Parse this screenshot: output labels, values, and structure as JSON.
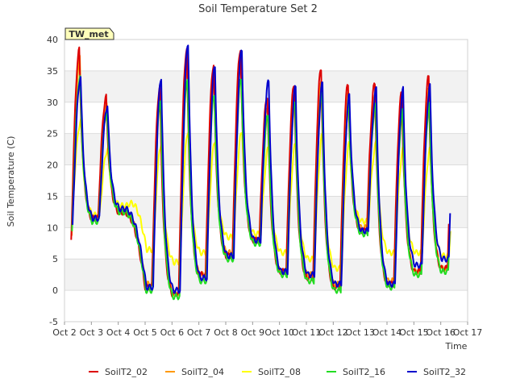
{
  "chart_data": {
    "type": "line",
    "title": "Soil Temperature Set 2",
    "xlabel": "Time",
    "ylabel": "Soil Temperature (C)",
    "ylim": [
      -5,
      40
    ],
    "xlim": [
      "Oct 2",
      "Oct 17"
    ],
    "yticks": [
      -5,
      0,
      5,
      10,
      15,
      20,
      25,
      30,
      35,
      40
    ],
    "xtick_labels": [
      "Oct 2",
      "Oct 3",
      "Oct 4",
      "Oct 5",
      "Oct 6",
      "Oct 7",
      "Oct 8",
      "Oct 9",
      "Oct 10",
      "Oct 11",
      "Oct 12",
      "Oct 13",
      "Oct 14",
      "Oct 15",
      "Oct 16",
      "Oct 17"
    ],
    "grid": "horizontal bands",
    "legend_position": "bottom",
    "annotation": "TW_met",
    "days": [
      "Oct 2",
      "Oct 3",
      "Oct 4",
      "Oct 5",
      "Oct 6",
      "Oct 7",
      "Oct 8",
      "Oct 9",
      "Oct 10",
      "Oct 11",
      "Oct 12",
      "Oct 13",
      "Oct 14",
      "Oct 15",
      "Oct 16"
    ],
    "series": [
      {
        "name": "SoilT2_02",
        "color": "#dd0000",
        "minima": [
          8,
          11.5,
          12.5,
          0.5,
          -0.5,
          2.5,
          5.5,
          8,
          3,
          2,
          0.5,
          9.5,
          1,
          3,
          3.5
        ],
        "maxima": [
          38.3,
          30.8,
          null,
          32.5,
          38.5,
          36,
          38.5,
          31,
          33,
          35.5,
          33,
          33,
          31.5,
          34,
          32
        ]
      },
      {
        "name": "SoilT2_04",
        "color": "#ff9900",
        "minima": [
          8.5,
          11.5,
          12.5,
          1,
          -0.5,
          2.5,
          6,
          8,
          3,
          2.5,
          1,
          10,
          1.5,
          3,
          3.5
        ],
        "maxima": [
          37,
          29.5,
          null,
          31,
          36,
          33,
          36,
          29.5,
          31.5,
          33.5,
          31.5,
          31,
          29.5,
          32,
          30
        ]
      },
      {
        "name": "SoilT2_08",
        "color": "#ffff00",
        "minima": [
          13.5,
          12,
          13.5,
          6.5,
          4.5,
          6,
          8.5,
          9,
          6,
          5,
          3.5,
          11,
          6,
          6,
          5.5
        ],
        "maxima": [
          27,
          22.5,
          null,
          23.5,
          25.5,
          24,
          25.5,
          23,
          23.5,
          25,
          23.5,
          23.5,
          22.5,
          22.5,
          22.5
        ]
      },
      {
        "name": "SoilT2_16",
        "color": "#22dd22",
        "minima": [
          9,
          11,
          12.5,
          0,
          -1,
          1.5,
          5,
          7.5,
          2.5,
          1.5,
          0,
          9,
          0.5,
          2.5,
          3
        ],
        "maxima": [
          34,
          28.5,
          null,
          30.5,
          34,
          31.5,
          34,
          28,
          30,
          31.5,
          29.5,
          29.5,
          28.5,
          29.5,
          29
        ]
      },
      {
        "name": "SoilT2_32",
        "color": "#0000cc",
        "minima": [
          10,
          11.5,
          13,
          0.5,
          0,
          2,
          5.5,
          8,
          3,
          2.5,
          1,
          9.5,
          1,
          4,
          5
        ],
        "maxima": [
          34,
          29.5,
          null,
          34,
          39.5,
          36,
          38.5,
          33.5,
          32.5,
          33,
          31,
          32,
          32,
          32.5,
          34.5
        ]
      }
    ]
  }
}
